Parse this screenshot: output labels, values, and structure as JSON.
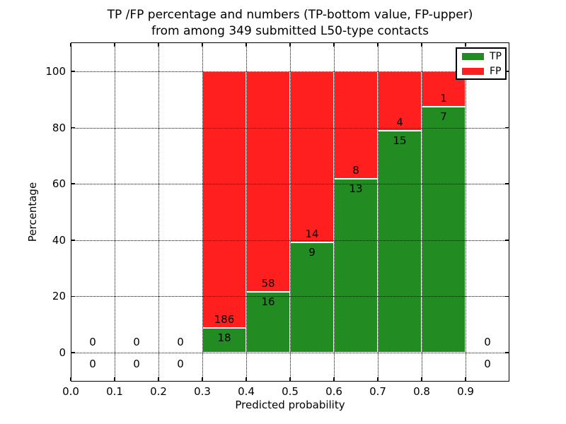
{
  "title": {
    "line1": "TP /FP percentage and numbers (TP-bottom value, FP-upper)",
    "line2": "from among 349 submitted L50-type contacts"
  },
  "axes": {
    "xlabel": "Predicted probability",
    "ylabel": "Percentage"
  },
  "legend": {
    "position": "upper right",
    "items": [
      {
        "label": "TP",
        "color": "#228b22"
      },
      {
        "label": "FP",
        "color": "#ff1f1f"
      }
    ]
  },
  "chart_data": {
    "type": "bar",
    "stacked": true,
    "title": "TP /FP percentage and numbers (TP-bottom value, FP-upper) from among 349 submitted L50-type contacts",
    "xlabel": "Predicted probability",
    "ylabel": "Percentage",
    "total_submitted_contacts": 349,
    "xlim": [
      0.0,
      1.0
    ],
    "ylim_percent": [
      0,
      100
    ],
    "x_ticks": [
      0.0,
      0.1,
      0.2,
      0.3,
      0.4,
      0.5,
      0.6,
      0.7,
      0.8,
      0.9
    ],
    "x_tick_labels": [
      "0.0",
      "0.1",
      "0.2",
      "0.3",
      "0.4",
      "0.5",
      "0.6",
      "0.7",
      "0.8",
      "0.9"
    ],
    "y_ticks": [
      0,
      20,
      40,
      60,
      80,
      100
    ],
    "y_tick_labels": [
      "0",
      "20",
      "40",
      "60",
      "80",
      "100"
    ],
    "grid": true,
    "grid_linestyle": "dotted",
    "legend_position": "upper right",
    "series": [
      {
        "name": "TP",
        "color": "#228b22",
        "position": "bottom"
      },
      {
        "name": "FP",
        "color": "#ff1f1f",
        "position": "top"
      }
    ],
    "bins": [
      {
        "x_range": [
          0.0,
          0.1
        ],
        "tp": 0,
        "fp": 0
      },
      {
        "x_range": [
          0.1,
          0.2
        ],
        "tp": 0,
        "fp": 0
      },
      {
        "x_range": [
          0.2,
          0.3
        ],
        "tp": 0,
        "fp": 0
      },
      {
        "x_range": [
          0.3,
          0.4
        ],
        "tp": 18,
        "fp": 186
      },
      {
        "x_range": [
          0.4,
          0.5
        ],
        "tp": 16,
        "fp": 58
      },
      {
        "x_range": [
          0.5,
          0.6
        ],
        "tp": 9,
        "fp": 14
      },
      {
        "x_range": [
          0.6,
          0.7
        ],
        "tp": 13,
        "fp": 8
      },
      {
        "x_range": [
          0.7,
          0.8
        ],
        "tp": 15,
        "fp": 4
      },
      {
        "x_range": [
          0.8,
          0.9
        ],
        "tp": 7,
        "fp": 1
      },
      {
        "x_range": [
          0.9,
          1.0
        ],
        "tp": 0,
        "fp": 0
      }
    ]
  }
}
